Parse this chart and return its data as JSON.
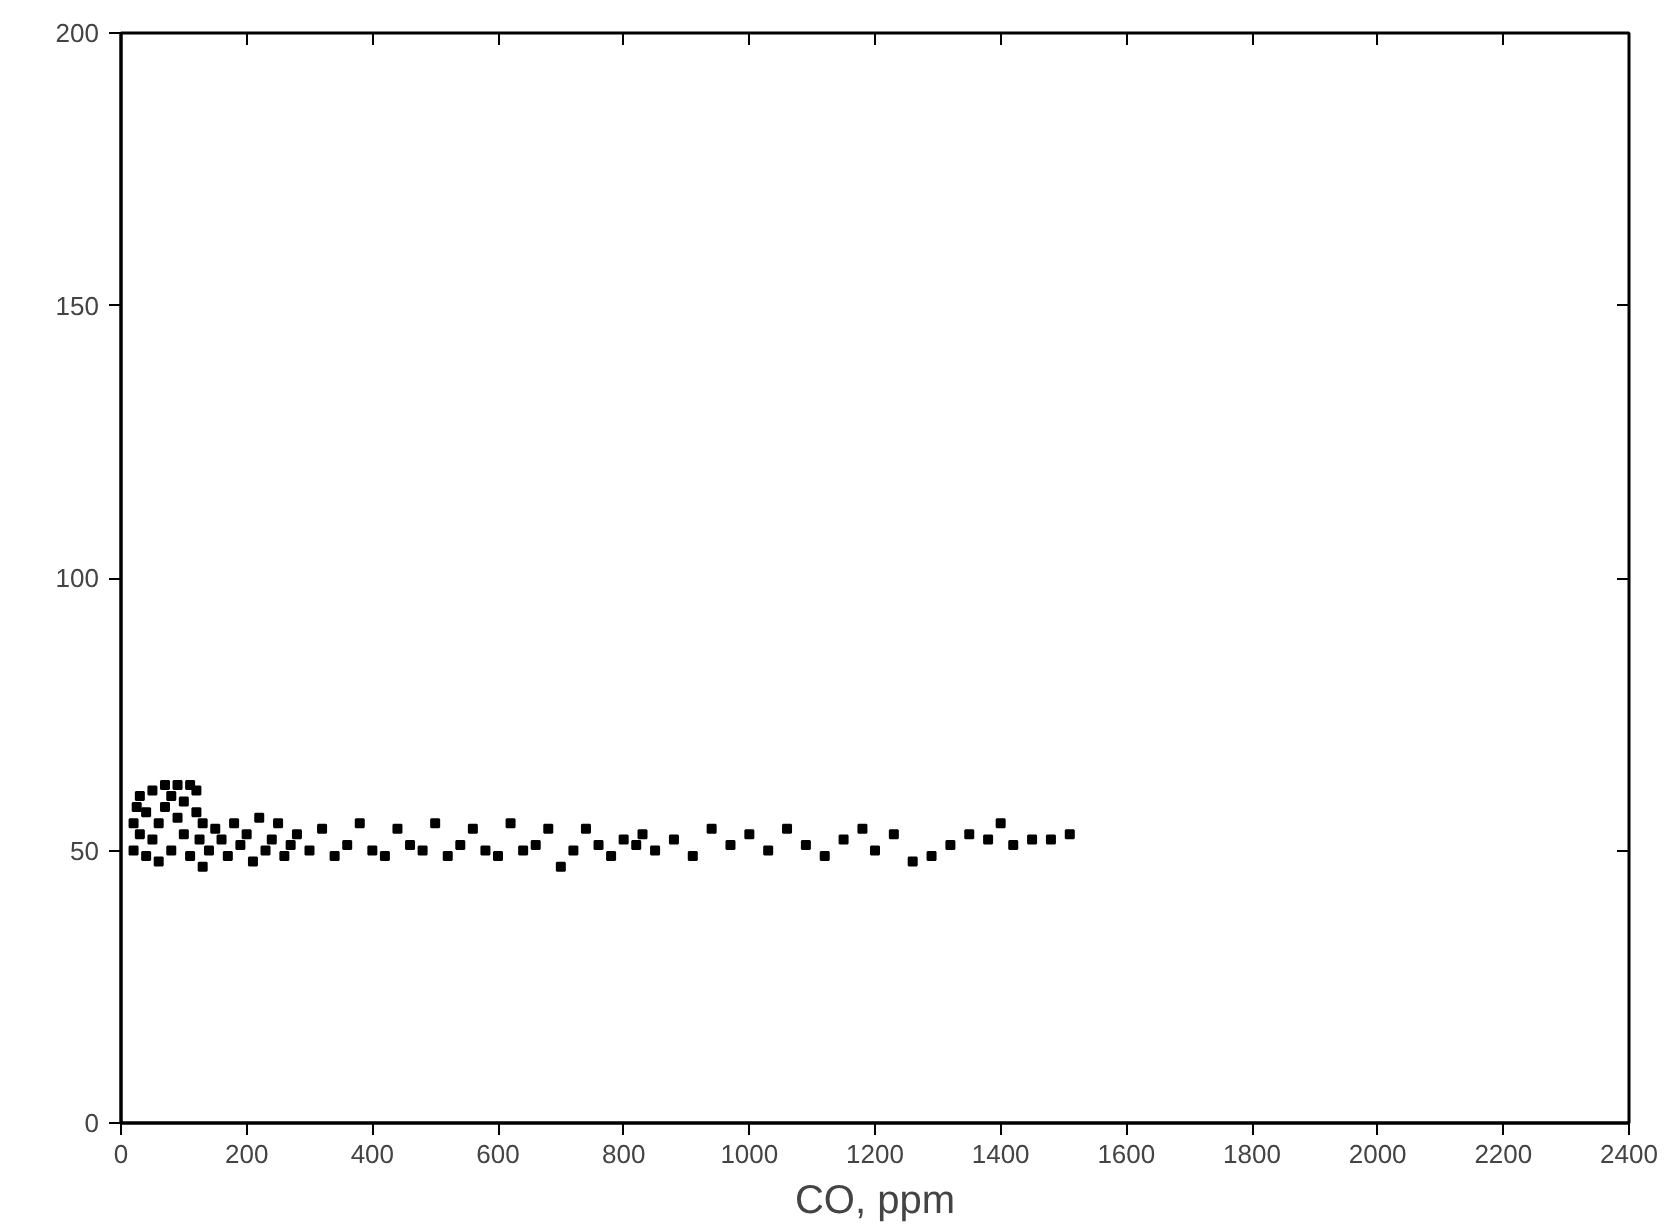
{
  "chart_data": {
    "type": "scatter",
    "xlabel": "CO, ppm",
    "marker": "square",
    "grid": false,
    "xlim": [
      0,
      2400
    ],
    "xticks": [
      0,
      200,
      400,
      600,
      800,
      1000,
      1200,
      1400,
      1600,
      1800,
      2000,
      2200,
      2400
    ],
    "ylim": [
      0,
      200
    ],
    "yticks": [
      0,
      50,
      100,
      150,
      200
    ],
    "series": [
      {
        "color": "#000000",
        "x": [
          20,
          20,
          25,
          30,
          30,
          40,
          40,
          50,
          50,
          60,
          60,
          70,
          70,
          80,
          80,
          90,
          90,
          100,
          100,
          110,
          110,
          120,
          120,
          125,
          130,
          130,
          140,
          150,
          160,
          170,
          180,
          190,
          200,
          210,
          220,
          230,
          240,
          250,
          260,
          270,
          280,
          300,
          320,
          340,
          360,
          380,
          400,
          420,
          440,
          460,
          480,
          500,
          520,
          540,
          560,
          580,
          600,
          620,
          640,
          660,
          680,
          700,
          720,
          740,
          760,
          780,
          800,
          820,
          830,
          850,
          880,
          910,
          940,
          970,
          1000,
          1030,
          1060,
          1090,
          1120,
          1150,
          1180,
          1200,
          1230,
          1260,
          1290,
          1320,
          1350,
          1380,
          1400,
          1420,
          1450,
          1480,
          1510
        ],
        "values": [
          50,
          55,
          58,
          53,
          60,
          49,
          57,
          61,
          52,
          55,
          48,
          62,
          58,
          50,
          60,
          56,
          62,
          53,
          59,
          62,
          49,
          57,
          61,
          52,
          47,
          55,
          50,
          54,
          52,
          49,
          55,
          51,
          53,
          48,
          56,
          50,
          52,
          55,
          49,
          51,
          53,
          50,
          54,
          49,
          51,
          55,
          50,
          49,
          54,
          51,
          50,
          55,
          49,
          51,
          54,
          50,
          49,
          55,
          50,
          51,
          54,
          47,
          50,
          54,
          51,
          49,
          52,
          51,
          53,
          50,
          52,
          49,
          54,
          51,
          53,
          50,
          54,
          51,
          49,
          52,
          54,
          50,
          53,
          48,
          49,
          51,
          53,
          52,
          55,
          51,
          52,
          52,
          53
        ]
      }
    ]
  }
}
